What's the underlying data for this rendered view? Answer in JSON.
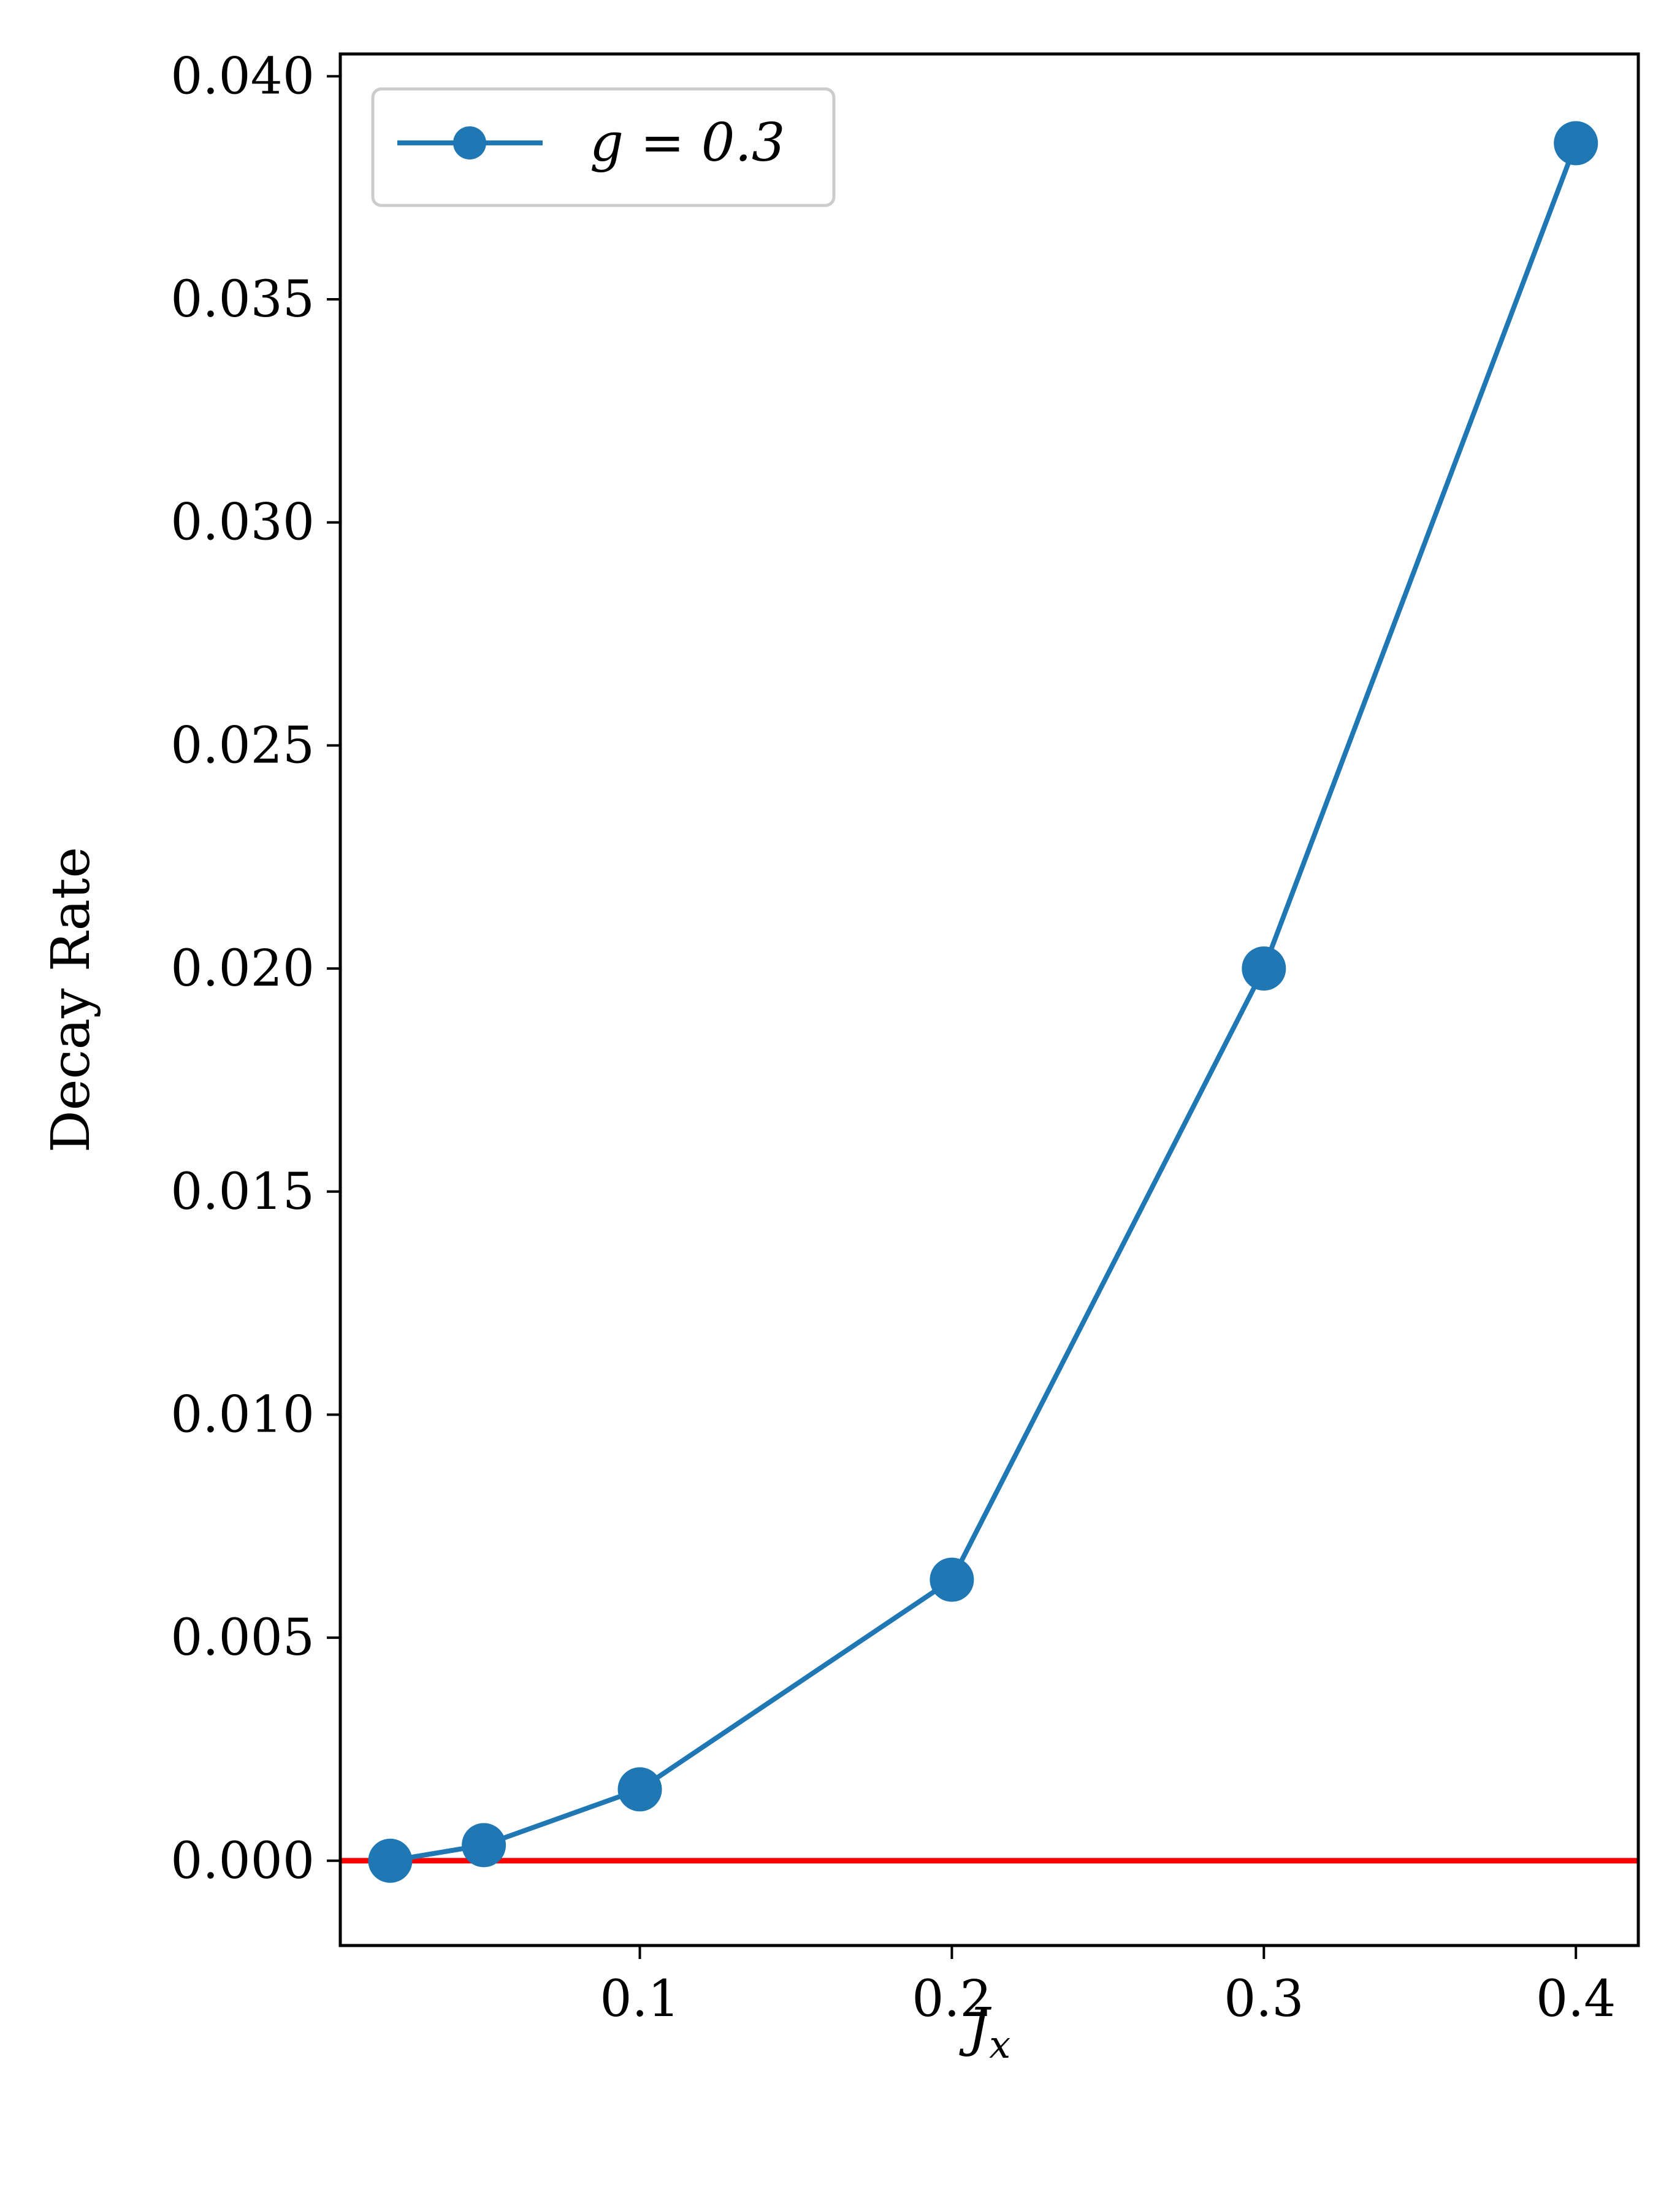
{
  "chart_data": {
    "type": "line",
    "xlabel": "J_x",
    "xlabel_main": "J",
    "xlabel_sub": "x",
    "ylabel": "Decay Rate",
    "xlim": [
      0.004,
      0.42
    ],
    "ylim": [
      -0.0019,
      0.0405
    ],
    "xticks": [
      0.1,
      0.2,
      0.3,
      0.4
    ],
    "xtick_labels": [
      "0.1",
      "0.2",
      "0.3",
      "0.4"
    ],
    "yticks": [
      0.0,
      0.005,
      0.01,
      0.015,
      0.02,
      0.025,
      0.03,
      0.035,
      0.04
    ],
    "ytick_labels": [
      "0.000",
      "0.005",
      "0.010",
      "0.015",
      "0.020",
      "0.025",
      "0.030",
      "0.035",
      "0.040"
    ],
    "grid": false,
    "legend_position": "top-left",
    "series": [
      {
        "name": "g = 0.3",
        "x": [
          0.02,
          0.05,
          0.1,
          0.2,
          0.3,
          0.4
        ],
        "y": [
          0.0,
          0.00035,
          0.0016,
          0.0063,
          0.02,
          0.0385
        ],
        "color": "#1f77b4",
        "marker": "circle"
      }
    ],
    "reference_line": {
      "y": 0.0,
      "color": "#ff0000"
    }
  }
}
